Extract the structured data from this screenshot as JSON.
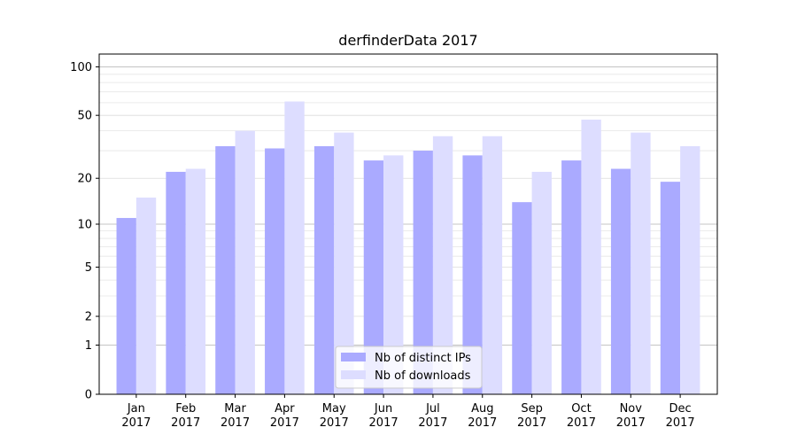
{
  "chart_data": {
    "type": "bar",
    "title": "derfinderData 2017",
    "xlabel": "",
    "ylabel": "",
    "y_scale": "log1p",
    "ylim": [
      0,
      120
    ],
    "y_ticks": [
      0,
      1,
      2,
      5,
      10,
      20,
      50,
      100
    ],
    "grid": "horizontal",
    "legend_placement": "lower-center",
    "categories": [
      [
        "Jan",
        "2017"
      ],
      [
        "Feb",
        "2017"
      ],
      [
        "Mar",
        "2017"
      ],
      [
        "Apr",
        "2017"
      ],
      [
        "May",
        "2017"
      ],
      [
        "Jun",
        "2017"
      ],
      [
        "Jul",
        "2017"
      ],
      [
        "Aug",
        "2017"
      ],
      [
        "Sep",
        "2017"
      ],
      [
        "Oct",
        "2017"
      ],
      [
        "Nov",
        "2017"
      ],
      [
        "Dec",
        "2017"
      ]
    ],
    "series": [
      {
        "name": "Nb of distinct IPs",
        "color": "#aaaaff",
        "values": [
          11,
          22,
          32,
          31,
          32,
          26,
          30,
          28,
          14,
          26,
          23,
          19
        ]
      },
      {
        "name": "Nb of downloads",
        "color": "#ddddff",
        "values": [
          15,
          23,
          40,
          61,
          39,
          28,
          37,
          37,
          22,
          47,
          39,
          32
        ]
      }
    ]
  }
}
